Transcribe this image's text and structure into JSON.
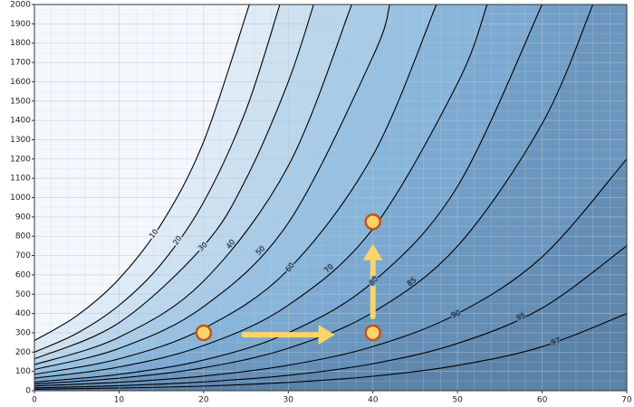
{
  "chart_data": {
    "type": "contour",
    "xlim": [
      0,
      70
    ],
    "ylim": [
      0,
      2000
    ],
    "xticks": [
      0,
      10,
      20,
      30,
      40,
      50,
      60,
      70
    ],
    "yticks": [
      0,
      100,
      200,
      300,
      400,
      500,
      600,
      700,
      800,
      900,
      1000,
      1100,
      1200,
      1300,
      1400,
      1500,
      1600,
      1700,
      1800,
      1900,
      2000
    ],
    "grid": true,
    "background_color": "#f4f8fc",
    "line_color": "#000000",
    "contours": [
      {
        "level": 10,
        "color": "#dfebf6",
        "x": [
          0,
          5,
          10,
          15,
          20,
          25.4
        ],
        "y": [
          260,
          388,
          579,
          864,
          1290,
          2000
        ]
      },
      {
        "level": 20,
        "color": "#cde1f1",
        "x": [
          0,
          5,
          10,
          15,
          20,
          25,
          29
        ],
        "y": [
          200,
          297,
          442,
          657,
          977,
          1453,
          2000
        ]
      },
      {
        "level": 30,
        "color": "#bad6ed",
        "x": [
          0,
          10,
          20,
          25,
          30,
          33
        ],
        "y": [
          165,
          352,
          750,
          1096,
          1600,
          2000
        ]
      },
      {
        "level": 40,
        "color": "#a8cbe7",
        "x": [
          0,
          10,
          20,
          30,
          37.5
        ],
        "y": [
          135,
          277,
          568,
          1164,
          2000
        ]
      },
      {
        "level": 50,
        "color": "#97c0e1",
        "x": [
          0,
          10,
          20,
          30,
          40,
          42
        ],
        "y": [
          110,
          219,
          436,
          869,
          1731,
          2000
        ]
      },
      {
        "level": 60,
        "color": "#88b5da",
        "x": [
          0,
          10,
          20,
          30,
          40,
          47.5
        ],
        "y": [
          85,
          165,
          322,
          627,
          1219,
          2000
        ]
      },
      {
        "level": 70,
        "color": "#7ca9d1",
        "x": [
          0,
          10,
          20,
          30,
          40,
          50,
          53.5
        ],
        "y": [
          65,
          123,
          234,
          443,
          839,
          1592,
          2000
        ]
      },
      {
        "level": 80,
        "color": "#729fc7",
        "x": [
          0,
          10,
          20,
          30,
          40,
          50,
          60
        ],
        "y": [
          45,
          85,
          159,
          300,
          563,
          1058,
          2000
        ]
      },
      {
        "level": 85,
        "color": "#6b96be",
        "x": [
          0,
          10,
          20,
          30,
          40,
          50,
          60,
          66
        ],
        "y": [
          35,
          65,
          119,
          220,
          406,
          749,
          1383,
          2000
        ]
      },
      {
        "level": 90,
        "color": "#658eb6",
        "x": [
          0,
          10,
          20,
          30,
          40,
          50,
          60,
          70
        ],
        "y": [
          25,
          44,
          76,
          132,
          229,
          399,
          693,
          1200
        ]
      },
      {
        "level": 95,
        "color": "#6088af",
        "x": [
          0,
          10,
          20,
          30,
          40,
          50,
          60,
          70
        ],
        "y": [
          15,
          26,
          46,
          80,
          140,
          245,
          428,
          750
        ]
      },
      {
        "level": 97,
        "color": "#5b82a8",
        "x": [
          0,
          10,
          20,
          30,
          40,
          50,
          60,
          70
        ],
        "y": [
          8,
          14,
          24,
          43,
          75,
          131,
          228,
          400
        ]
      }
    ],
    "markers": {
      "x": [
        20,
        40,
        40
      ],
      "y": [
        300,
        300,
        875
      ],
      "color": "#fbd46a",
      "edge_color": "#c8501a"
    },
    "arrows": {
      "color": "#fbd46a",
      "x0": [
        24.8,
        40
      ],
      "y0": [
        290,
        384
      ],
      "x1": [
        35.5,
        40
      ],
      "y1": [
        290,
        760
      ]
    }
  }
}
